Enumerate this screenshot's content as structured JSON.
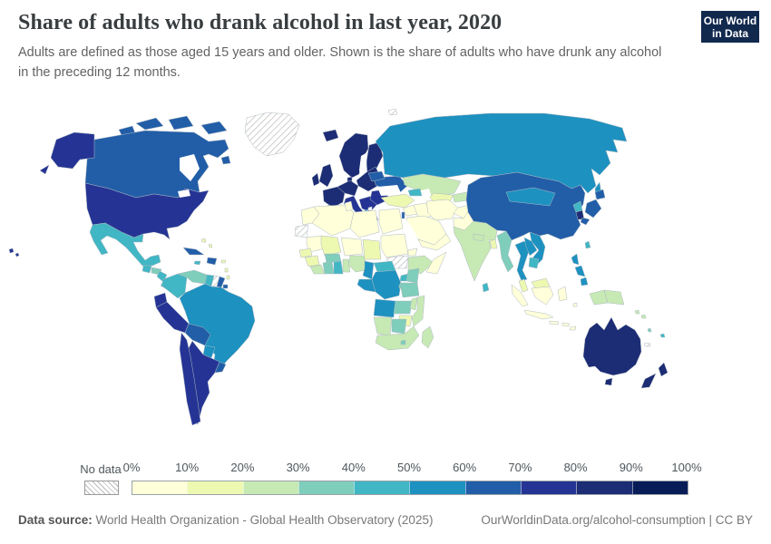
{
  "header": {
    "title": "Share of adults who drank alcohol in last year, 2020",
    "subtitle_line1": "Adults are defined as those aged 15 years and older. Shown is the share of adults who have drunk any alcohol",
    "subtitle_line2": "in the preceding 12 months.",
    "logo": {
      "line1": "Our World",
      "line2": "in Data",
      "bg_color": "#12294e",
      "accent_color": "#c0394a"
    }
  },
  "footer": {
    "data_source_label": "Data source:",
    "data_source_text": " World Health Organization - Global Health Observatory (2025)",
    "link": "OurWorldinData.org/alcohol-consumption",
    "license": " | CC BY"
  },
  "chart_data": {
    "type": "choropleth_map",
    "title": "Share of adults who drank alcohol in last year, 2020",
    "year": 2020,
    "unit": "% of adults aged 15+ who drank alcohol in the preceding 12 months",
    "projection": "world equal-area, Atlantic centered",
    "legend": {
      "no_data_label": "No data",
      "tick_labels": [
        "0%",
        "10%",
        "20%",
        "30%",
        "40%",
        "50%",
        "60%",
        "70%",
        "80%",
        "90%",
        "100%"
      ],
      "bin_ranges": [
        "0-10%",
        "10-20%",
        "20-30%",
        "30-40%",
        "40-50%",
        "50-60%",
        "60-70%",
        "70-80%",
        "80-90%",
        "90-100%"
      ],
      "bin_colors": [
        "#ffffd9",
        "#edf8b1",
        "#c7e9b4",
        "#7fcdbb",
        "#41b6c4",
        "#1d91c0",
        "#225ea8",
        "#253494",
        "#1c2c75",
        "#081d58"
      ],
      "no_data_fill": "hatched",
      "position": "bottom"
    },
    "country_bins": {
      "greenland": "nd",
      "canada": 6,
      "canada-arctic-islands": 6,
      "alaska": 7,
      "usa": 7,
      "hawaii": 7,
      "mexico": 4,
      "guatemala": 4,
      "honduras": 3,
      "nicaragua": 4,
      "costa-rica-panama": 4,
      "cuba": 6,
      "hispaniola": 6,
      "jamaica": 4,
      "puerto-rico": 1,
      "bahamas": 1,
      "lesser-antilles": 1,
      "trinidad": 6,
      "colombia": 4,
      "venezuela": 3,
      "guyana": 4,
      "suriname": "nd",
      "french-guiana": 6,
      "ecuador": 7,
      "peru": 7,
      "brazil": 5,
      "bolivia": 6,
      "paraguay": 5,
      "chile": 7,
      "argentina": 7,
      "uruguay": 6,
      "iceland": 8,
      "norway-sweden": 8,
      "finland": 8,
      "denmark": 8,
      "uk": 8,
      "ireland": 8,
      "france": 8,
      "iberia": 8,
      "germany-central": 8,
      "italy": 7,
      "poland-baltics": 8,
      "balkans": 7,
      "greece": 7,
      "albania": 4,
      "north-macedonia": "nd",
      "romania-bulgaria": 7,
      "ukraine": 6,
      "belarus": 6,
      "russia": 5,
      "svalbard": "nd",
      "kazakhstan": 2,
      "uzbekistan-turkmenistan": 1,
      "kyrgyzstan-tajikistan": 2,
      "turkey": 1,
      "caucasus": 4,
      "syria-jordan": 0,
      "israel": 6,
      "iraq": 0,
      "iran": 0,
      "saudi-arabia": 0,
      "yemen-oman": 0,
      "afghanistan": 0,
      "pakistan": 0,
      "india": 2,
      "nepal-bhutan": 2,
      "bangladesh": 1,
      "sri-lanka": 4,
      "myanmar": 3,
      "china": 6,
      "mongolia": 5,
      "north-korea": 4,
      "south-korea": 8,
      "japan": 6,
      "taiwan": 4,
      "thailand": 5,
      "laos": 5,
      "vietnam": 5,
      "cambodia": 4,
      "malaysia": 1,
      "indonesia": 0,
      "philippines": 5,
      "west-papua": 2,
      "papua-new-guinea": 2,
      "timor-leste": 0,
      "solomon-islands": 2,
      "vanuatu": 3,
      "fiji": 4,
      "new-caledonia": "nd",
      "australia": 8,
      "new-zealand": 8,
      "morocco": 0,
      "western-sahara": "nd",
      "algeria": 0,
      "tunisia": 0,
      "libya": 0,
      "egypt": 0,
      "mauritania": 0,
      "senegal": 1,
      "mali": 1,
      "guinea": 1,
      "sierra-leone-liberia": 2,
      "ivory-coast": 3,
      "ghana": 4,
      "togo-benin": 2,
      "burkina-faso": 3,
      "niger": 0,
      "nigeria": 2,
      "chad": 1,
      "sudan": 0,
      "eritrea": 0,
      "south-sudan": "nd",
      "ethiopia": 2,
      "somalia": 0,
      "cameroon": 5,
      "central-african-republic": 4,
      "gabon-congo": 5,
      "drc": 5,
      "uganda": 4,
      "kenya": 3,
      "rwanda-burundi": 3,
      "tanzania": 3,
      "angola": 5,
      "zambia": 3,
      "malawi": 2,
      "mozambique": 2,
      "zimbabwe": 1,
      "namibia": 2,
      "botswana": 3,
      "south-africa": 2,
      "lesotho": 3,
      "madagascar": 2
    }
  }
}
